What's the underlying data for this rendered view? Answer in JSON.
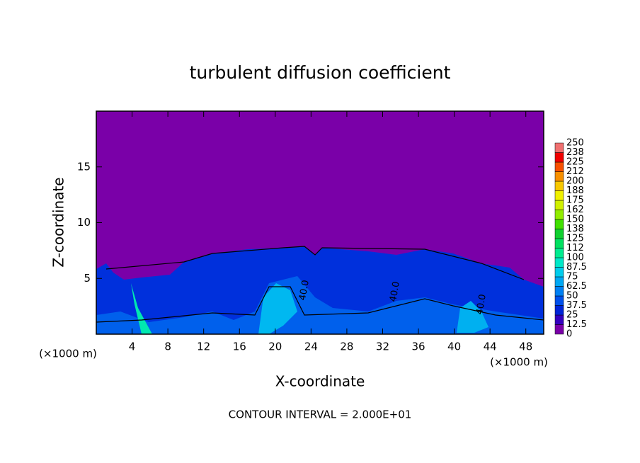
{
  "chart_data": {
    "type": "contour",
    "title": "turbulent diffusion coefficient",
    "x_label": "X-coordinate",
    "y_label": "Z-coordinate",
    "x_unit": "(×1000 m)",
    "x_unit_right": "(×1000 m)",
    "footer": "CONTOUR INTERVAL = 2.000E+01",
    "xlim": [
      0,
      50
    ],
    "ylim": [
      0,
      20
    ],
    "xticks": [
      4,
      8,
      12,
      16,
      20,
      24,
      28,
      32,
      36,
      40,
      44,
      48
    ],
    "yticks": [
      5,
      10,
      15
    ],
    "contour_labels": [
      "40.0",
      "40.0",
      "40.0"
    ],
    "colorbar": {
      "levels": [
        0,
        12.5,
        25,
        37.5,
        50,
        62.5,
        75,
        87.5,
        100,
        {
          "value": 112.5,
          "label": "112"
        },
        125,
        {
          "value": 137.5,
          "label": "138"
        },
        150,
        {
          "value": 162.5,
          "label": "162"
        },
        175,
        {
          "value": 187.5,
          "label": "188"
        },
        200,
        {
          "value": 212.5,
          "label": "212"
        },
        225,
        {
          "value": 237.5,
          "label": "238"
        },
        250
      ],
      "colors": [
        "#7a00a8",
        "#3400c0",
        "#0024d8",
        "#0050ec",
        "#0080f4",
        "#00a8f4",
        "#00ccec",
        "#00e8c8",
        "#00ec90",
        "#00e060",
        "#10d030",
        "#40e000",
        "#90ec00",
        "#d0f000",
        "#f0f000",
        "#f8c800",
        "#f89000",
        "#f85000",
        "#f00000",
        "#f07070"
      ]
    }
  }
}
